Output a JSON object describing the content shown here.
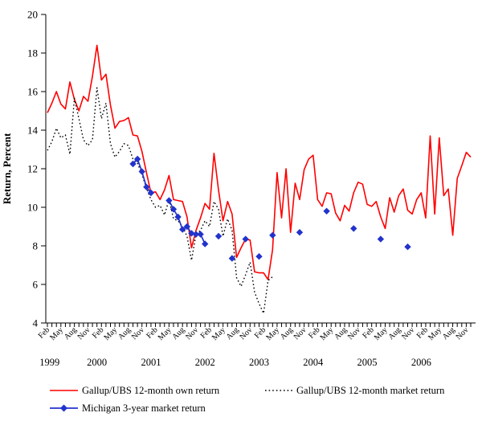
{
  "chart_data": {
    "type": "line",
    "title": "",
    "ylabel": "Return, Percent",
    "ylim": [
      4,
      20
    ],
    "y_ticks": [
      4,
      6,
      8,
      10,
      12,
      14,
      16,
      18,
      20
    ],
    "x_start": "Feb 1999",
    "x_end": "Dec 2006",
    "months_total": 95,
    "month_tick_labels": [
      "Feb",
      "May",
      "Aug",
      "Nov"
    ],
    "year_labels": [
      "1999",
      "2000",
      "2001",
      "2002",
      "2003",
      "2004",
      "2005",
      "2006"
    ],
    "grid": false,
    "legend_position": "bottom",
    "series": [
      {
        "name": "Gallup/UBS 12-month own return",
        "color": "#ff0000",
        "style": "solid",
        "start_index": 0,
        "values": [
          14.9,
          15.4,
          16.0,
          15.35,
          15.1,
          16.5,
          15.6,
          15.0,
          15.75,
          15.5,
          16.8,
          18.4,
          16.6,
          16.9,
          15.3,
          14.1,
          14.45,
          14.5,
          14.65,
          13.75,
          13.7,
          12.9,
          11.8,
          10.75,
          10.8,
          10.4,
          10.9,
          11.65,
          10.4,
          10.35,
          10.3,
          9.5,
          7.9,
          8.8,
          9.45,
          10.2,
          9.9,
          12.8,
          10.9,
          9.3,
          10.3,
          9.65,
          7.4,
          7.9,
          8.35,
          8.3,
          6.65,
          6.6,
          6.6,
          6.25,
          7.8,
          11.8,
          9.45,
          12.0,
          8.7,
          11.25,
          10.4,
          11.95,
          12.5,
          12.7,
          10.4,
          10.05,
          10.75,
          10.7,
          9.7,
          9.3,
          10.1,
          9.8,
          10.75,
          11.3,
          11.2,
          10.15,
          10.05,
          10.3,
          9.5,
          8.9,
          10.5,
          9.75,
          10.6,
          10.95,
          9.85,
          9.65,
          10.4,
          10.75,
          9.45,
          13.7,
          9.65,
          13.6,
          10.6,
          10.95,
          8.55,
          11.5,
          12.15,
          12.85,
          12.6
        ]
      },
      {
        "name": "Gallup/UBS 12-month market return",
        "color": "#000000",
        "style": "dotted",
        "start_index": 0,
        "values": [
          12.95,
          13.4,
          14.1,
          13.6,
          13.75,
          12.75,
          15.65,
          14.6,
          13.5,
          13.2,
          13.5,
          16.2,
          14.6,
          15.4,
          13.3,
          12.6,
          12.9,
          13.3,
          13.2,
          12.5,
          12.3,
          11.7,
          11.0,
          10.4,
          10.0,
          10.1,
          9.6,
          10.4,
          9.4,
          9.3,
          9.0,
          8.5,
          7.25,
          8.6,
          8.8,
          9.3,
          9.0,
          10.3,
          9.9,
          8.5,
          9.4,
          8.8,
          6.35,
          5.9,
          6.5,
          7.15,
          5.6,
          5.0,
          4.5,
          6.2,
          6.4
        ]
      },
      {
        "name": "Michigan 3-year market return",
        "color": "#2233cc",
        "style": "line-diamond",
        "segments": [
          {
            "start_index": 19,
            "values": [
              12.25,
              12.5,
              11.85,
              11.05,
              10.75
            ]
          },
          {
            "start_index": 27,
            "values": [
              10.35,
              9.9,
              9.5,
              8.85,
              9.0,
              8.65,
              8.6,
              8.6,
              8.1
            ]
          }
        ],
        "isolated_points": [
          [
            38,
            8.5
          ],
          [
            41,
            7.35
          ],
          [
            44,
            8.35
          ],
          [
            47,
            7.45
          ],
          [
            50,
            8.55
          ],
          [
            56,
            8.7
          ],
          [
            62,
            9.8
          ],
          [
            68,
            8.9
          ],
          [
            74,
            8.35
          ],
          [
            80,
            7.95
          ]
        ]
      }
    ]
  },
  "legend": {
    "own_return_label": "Gallup/UBS 12-month own return",
    "market_return_label": "Gallup/UBS 12-month market return",
    "michigan_label": "Michigan 3-year market return"
  },
  "colors": {
    "own_return": "#ff0000",
    "market_return": "#000000",
    "michigan": "#2233cc",
    "axis": "#000000",
    "background": "#ffffff"
  }
}
